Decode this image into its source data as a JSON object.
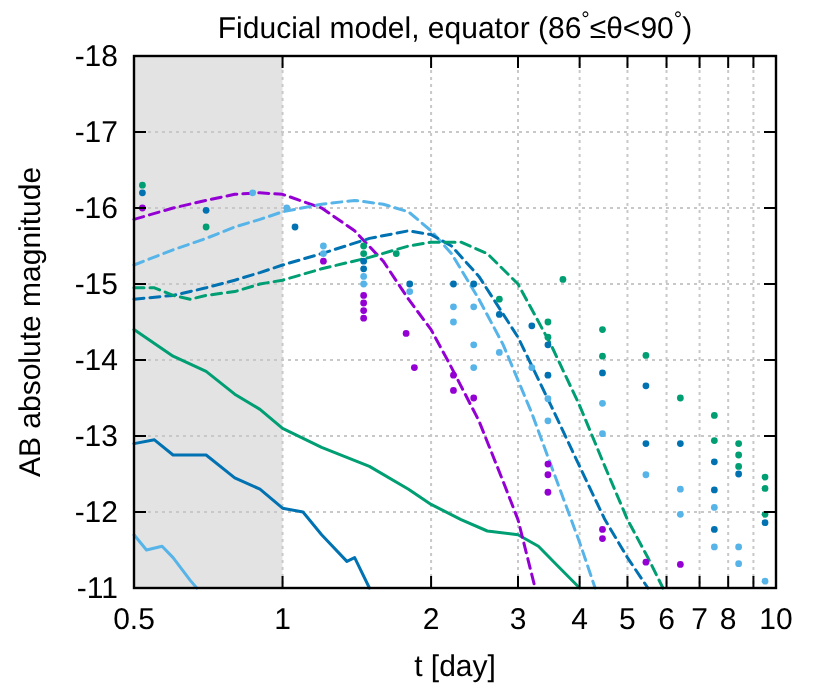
{
  "chart_data": {
    "type": "line",
    "title": "Fiducial model, equator (86$^{°}$≤θ<90$^{°}$)",
    "xlabel": "t [day]",
    "ylabel": "AB absolute magnitude",
    "log": "x",
    "grid": true,
    "xlim": [
      0.5,
      10
    ],
    "xticks": [
      0.5,
      1,
      2,
      3,
      4,
      5,
      6,
      7,
      8,
      {
        "value": 9,
        "label": null
      },
      10
    ],
    "ylim": [
      -11,
      -18
    ],
    "yticks": [
      -11,
      -12,
      -13,
      -14,
      -15,
      -16,
      -17,
      -18
    ],
    "bands": [
      {
        "axis": "x",
        "from": 0.5,
        "to": 1,
        "color": "#e3e3e3"
      }
    ],
    "series": [
      {
        "line_style": "solid",
        "color": "#009e73",
        "x": [
          0.5,
          0.6,
          0.7,
          0.8,
          0.9,
          1.0,
          1.2,
          1.5,
          1.8,
          2.0,
          2.3,
          2.6,
          3.0,
          3.3,
          3.6,
          4.0
        ],
        "values": [
          -14.4,
          -14.05,
          -13.85,
          -13.55,
          -13.35,
          -13.1,
          -12.85,
          -12.6,
          -12.3,
          -12.1,
          -11.9,
          -11.75,
          -11.7,
          -11.55,
          -11.3,
          -11.0
        ]
      },
      {
        "line_style": "solid",
        "color": "#0072b2",
        "x": [
          0.5,
          0.55,
          0.6,
          0.7,
          0.8,
          0.9,
          1.0,
          1.1,
          1.2,
          1.35,
          1.4,
          1.5
        ],
        "values": [
          -12.9,
          -12.95,
          -12.75,
          -12.75,
          -12.45,
          -12.3,
          -12.05,
          -12.0,
          -11.7,
          -11.35,
          -11.4,
          -11.0
        ]
      },
      {
        "line_style": "solid",
        "color": "#56b4e9",
        "x": [
          0.5,
          0.53,
          0.57,
          0.6,
          0.65,
          0.67
        ],
        "values": [
          -11.7,
          -11.5,
          -11.55,
          -11.4,
          -11.1,
          -11.0
        ]
      },
      {
        "line_style": "dashed",
        "color": "#9400d3",
        "x": [
          0.5,
          0.6,
          0.7,
          0.8,
          0.9,
          1.0,
          1.2,
          1.4,
          1.6,
          1.8,
          2.0,
          2.2,
          2.5,
          2.8,
          3.0,
          3.25
        ],
        "values": [
          -15.85,
          -16.0,
          -16.1,
          -16.18,
          -16.2,
          -16.18,
          -16.0,
          -15.7,
          -15.3,
          -14.8,
          -14.4,
          -13.9,
          -13.2,
          -12.4,
          -11.9,
          -11.0
        ]
      },
      {
        "line_style": "dashed",
        "color": "#56b4e9",
        "x": [
          0.5,
          0.6,
          0.7,
          0.8,
          0.9,
          1.0,
          1.2,
          1.4,
          1.6,
          1.8,
          2.0,
          2.2,
          2.5,
          2.8,
          3.2,
          3.6,
          4.0,
          4.3
        ],
        "values": [
          -15.25,
          -15.45,
          -15.6,
          -15.75,
          -15.85,
          -15.95,
          -16.05,
          -16.1,
          -16.05,
          -15.95,
          -15.7,
          -15.4,
          -14.8,
          -14.2,
          -13.3,
          -12.4,
          -11.6,
          -11.0
        ]
      },
      {
        "line_style": "dashed",
        "color": "#0072b2",
        "x": [
          0.5,
          0.6,
          0.7,
          0.8,
          0.9,
          1.0,
          1.2,
          1.5,
          1.8,
          2.0,
          2.2,
          2.5,
          3.0,
          3.5,
          4.0,
          4.5,
          5.0,
          5.5
        ],
        "values": [
          -14.8,
          -14.85,
          -14.95,
          -15.05,
          -15.15,
          -15.25,
          -15.4,
          -15.6,
          -15.7,
          -15.65,
          -15.5,
          -15.1,
          -14.3,
          -13.4,
          -12.6,
          -11.9,
          -11.4,
          -11.0
        ]
      },
      {
        "line_style": "dashed",
        "color": "#009e73",
        "x": [
          0.5,
          0.55,
          0.6,
          0.65,
          0.7,
          0.8,
          0.9,
          1.0,
          1.2,
          1.5,
          1.8,
          2.0,
          2.3,
          2.6,
          3.0,
          3.5,
          4.0,
          4.5,
          5.0,
          5.5,
          5.9
        ],
        "values": [
          -14.95,
          -14.95,
          -14.85,
          -14.8,
          -14.85,
          -14.9,
          -15.0,
          -15.05,
          -15.2,
          -15.35,
          -15.5,
          -15.55,
          -15.55,
          -15.4,
          -15.0,
          -14.2,
          -13.4,
          -12.6,
          -11.9,
          -11.4,
          -11.0
        ]
      },
      {
        "type": "scatter",
        "marker": "circle",
        "color": "#009e73",
        "x": [
          0.52,
          0.7,
          1.46,
          1.46,
          1.7,
          2.75,
          3.45,
          3.45,
          3.7,
          4.45,
          4.45,
          5.45,
          6.4,
          7.5,
          7.5,
          8.4,
          8.4,
          8.4,
          9.5,
          9.5,
          9.5
        ],
        "values": [
          -16.3,
          -15.75,
          -15.5,
          -15.4,
          -15.4,
          -14.8,
          -14.5,
          -14.3,
          -15.06,
          -14.4,
          -14.05,
          -14.06,
          -13.5,
          -13.27,
          -12.94,
          -12.9,
          -12.75,
          -12.6,
          -12.46,
          -12.31,
          -11.97
        ]
      },
      {
        "type": "scatter",
        "marker": "circle",
        "color": "#0072b2",
        "x": [
          0.52,
          0.7,
          1.06,
          1.46,
          1.46,
          1.81,
          2.22,
          2.44,
          2.75,
          3.2,
          3.45,
          3.45,
          4.45,
          5.45,
          5.45,
          6.4,
          7.5,
          7.5,
          7.5,
          8.4,
          9.5
        ],
        "values": [
          -16.2,
          -15.97,
          -15.75,
          -15.3,
          -15.2,
          -15.0,
          -15.0,
          -15.0,
          -14.6,
          -14.45,
          -14.2,
          -13.8,
          -13.83,
          -13.66,
          -12.9,
          -12.9,
          -12.66,
          -12.29,
          -11.77,
          -12.5,
          -11.86
        ]
      },
      {
        "type": "scatter",
        "marker": "circle",
        "color": "#56b4e9",
        "x": [
          0.87,
          1.02,
          1.21,
          1.21,
          1.46,
          1.46,
          1.81,
          2.22,
          2.22,
          2.44,
          2.44,
          2.44,
          2.75,
          3.2,
          3.45,
          3.45,
          4.45,
          4.45,
          5.45,
          6.4,
          6.4,
          7.5,
          7.5,
          8.4,
          8.4,
          9.5
        ],
        "values": [
          -16.2,
          -16.0,
          -15.5,
          -15.4,
          -15.1,
          -15.0,
          -14.9,
          -14.7,
          -14.5,
          -14.7,
          -14.2,
          -13.9,
          -14.1,
          -13.9,
          -13.49,
          -13.2,
          -13.43,
          -13.03,
          -12.49,
          -12.3,
          -11.97,
          -12.06,
          -11.54,
          -11.54,
          -11.32,
          -11.09
        ]
      },
      {
        "type": "scatter",
        "marker": "circle",
        "color": "#9400d3",
        "x": [
          0.52,
          1.21,
          1.46,
          1.46,
          1.46,
          1.46,
          1.78,
          1.85,
          2.22,
          2.22,
          2.44,
          3.45,
          3.45,
          3.45,
          4.45,
          4.45,
          5.45,
          6.4
        ],
        "values": [
          -16.0,
          -15.3,
          -14.85,
          -14.75,
          -14.65,
          -14.55,
          -14.35,
          -13.9,
          -13.8,
          -13.6,
          -13.5,
          -12.63,
          -12.49,
          -12.26,
          -11.77,
          -11.65,
          -11.34,
          -11.31
        ]
      }
    ]
  }
}
